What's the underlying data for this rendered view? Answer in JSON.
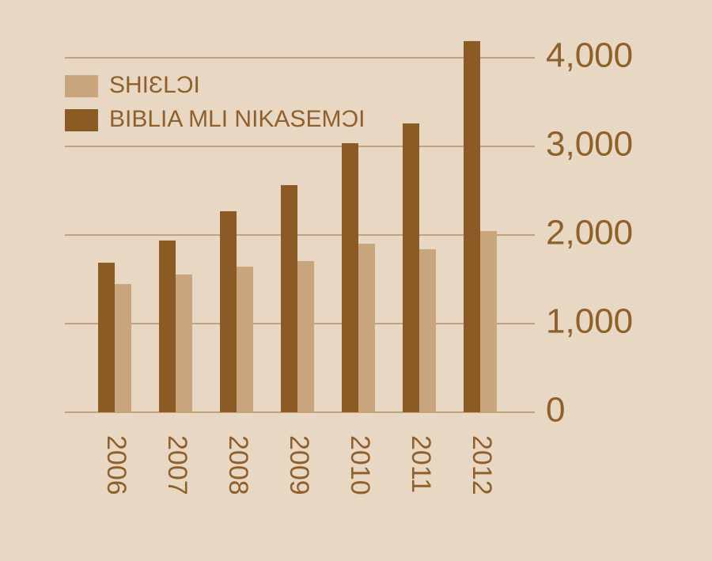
{
  "chart_data": {
    "type": "bar",
    "categories": [
      "2006",
      "2007",
      "2008",
      "2009",
      "2010",
      "2011",
      "2012"
    ],
    "series": [
      {
        "name": "SHIƐLƆI",
        "color": "#c9a57e",
        "values": [
          1446,
          1554,
          1643,
          1705,
          1902,
          1839,
          2045
        ]
      },
      {
        "name": "BIBLIA MLI NIKASEMƆI",
        "color": "#8c5a24",
        "values": [
          1687,
          1938,
          2268,
          2563,
          3036,
          3259,
          4188
        ]
      }
    ],
    "ylim": [
      0,
      4000
    ],
    "yticks": [
      0,
      {
        "value": 1000,
        "label": "1,000"
      },
      {
        "value": 2000,
        "label": "2,000"
      },
      {
        "value": 3000,
        "label": "3,000"
      },
      {
        "value": 4000,
        "label": "4,000"
      }
    ],
    "grid": true
  }
}
